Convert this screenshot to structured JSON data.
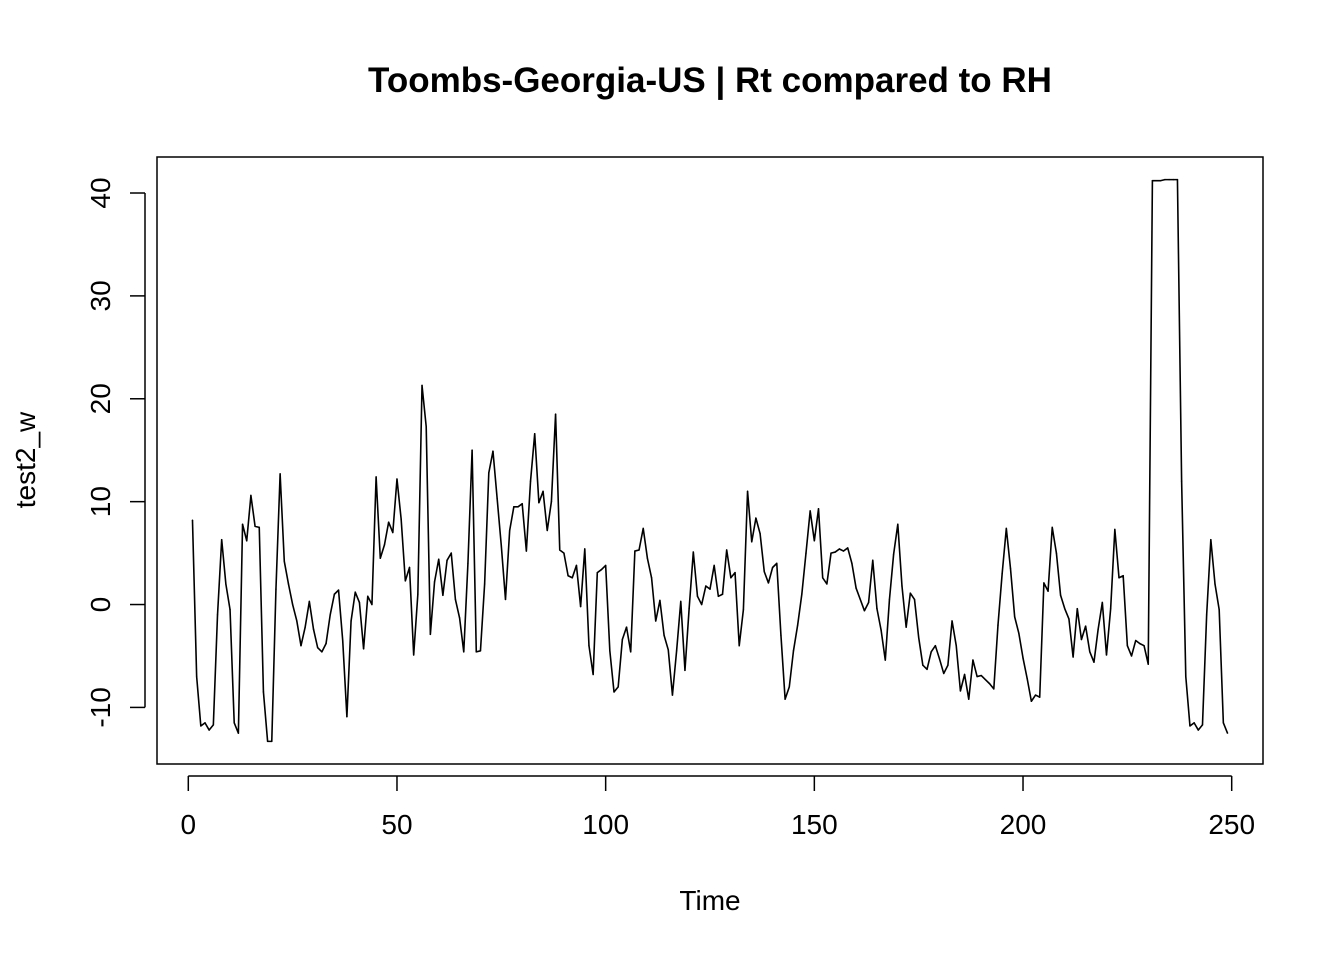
{
  "chart_data": {
    "type": "line",
    "title": "Toombs-Georgia-US | Rt compared to RH",
    "xlabel": "Time",
    "ylabel": "test2_w",
    "xlim": [
      -7.5,
      257.5
    ],
    "ylim": [
      -15.5,
      43.5
    ],
    "x_ticks": [
      0,
      50,
      100,
      150,
      200,
      250
    ],
    "y_ticks": [
      -10,
      0,
      10,
      20,
      30,
      40
    ],
    "x_tick_labels": [
      "0",
      "50",
      "100",
      "150",
      "200",
      "250"
    ],
    "y_tick_labels": [
      "-10",
      "0",
      "10",
      "20",
      "30",
      "40"
    ],
    "grid": false,
    "legend": "none",
    "line_color": "#000000",
    "series": [
      {
        "x_start": 1,
        "values": [
          8.2,
          -7.0,
          -11.8,
          -11.5,
          -12.2,
          -11.7,
          -1.0,
          6.3,
          2.0,
          -0.5,
          -11.5,
          -12.5,
          7.8,
          6.2,
          10.6,
          7.6,
          7.5,
          -8.5,
          -13.3,
          -13.3,
          1.5,
          12.7,
          4.2,
          2.0,
          0.0,
          -1.6,
          -4.0,
          -2.2,
          0.3,
          -2.4,
          -4.2,
          -4.6,
          -3.8,
          -1.0,
          1.0,
          1.4,
          -3.5,
          -10.9,
          -1.6,
          1.2,
          0.2,
          -4.3,
          0.8,
          0.0,
          12.4,
          4.5,
          5.8,
          8.0,
          7.0,
          12.2,
          8.3,
          2.3,
          3.6,
          -4.9,
          1.0,
          21.3,
          17.3,
          -2.9,
          2.2,
          4.4,
          0.9,
          4.3,
          5.0,
          0.5,
          -1.3,
          -4.6,
          4.0,
          15.0,
          -4.6,
          -4.5,
          2.0,
          12.8,
          14.9,
          10.3,
          5.7,
          0.5,
          7.2,
          9.5,
          9.5,
          9.8,
          5.2,
          12.0,
          16.6,
          9.9,
          11.0,
          7.2,
          10.0,
          18.5,
          5.3,
          5.0,
          2.8,
          2.6,
          3.8,
          -0.2,
          5.4,
          -4.0,
          -6.8,
          3.1,
          3.4,
          3.8,
          -4.5,
          -8.5,
          -8.0,
          -3.4,
          -2.2,
          -4.6,
          5.2,
          5.3,
          7.4,
          4.5,
          2.6,
          -1.6,
          0.4,
          -3.0,
          -4.4,
          -8.8,
          -4.5,
          0.3,
          -6.4,
          -0.4,
          5.1,
          0.8,
          0.0,
          1.8,
          1.5,
          3.8,
          0.8,
          1.0,
          5.3,
          2.6,
          3.1,
          -4.0,
          -0.5,
          11.0,
          6.1,
          8.4,
          6.9,
          3.2,
          2.1,
          3.6,
          4.0,
          -3.0,
          -9.2,
          -8.0,
          -4.5,
          -2.0,
          1.0,
          5.0,
          9.1,
          6.2,
          9.3,
          2.6,
          2.0,
          5.0,
          5.1,
          5.4,
          5.2,
          5.5,
          4.0,
          1.6,
          0.5,
          -0.6,
          0.2,
          4.3,
          -0.4,
          -2.5,
          -5.4,
          0.5,
          4.9,
          7.8,
          1.8,
          -2.2,
          1.1,
          0.5,
          -3.2,
          -5.9,
          -6.3,
          -4.6,
          -4.0,
          -5.3,
          -6.7,
          -5.9,
          -1.6,
          -4.0,
          -8.4,
          -6.8,
          -9.2,
          -5.4,
          -7.0,
          -6.9,
          -7.3,
          -7.7,
          -8.2,
          -2.0,
          3.0,
          7.4,
          3.5,
          -1.2,
          -2.8,
          -5.2,
          -7.2,
          -9.4,
          -8.8,
          -9.0,
          2.1,
          1.3,
          7.5,
          5.0,
          0.9,
          -0.4,
          -1.4,
          -5.1,
          -0.4,
          -3.4,
          -2.1,
          -4.6,
          -5.6,
          -2.4,
          0.2,
          -4.9,
          -0.4,
          7.3,
          2.6,
          2.8,
          -4.0,
          -5.0,
          -3.5,
          -3.8,
          -4.0,
          -5.8,
          41.2,
          41.2,
          41.2,
          41.3,
          41.3,
          41.3,
          41.3,
          12.0,
          -7.0,
          -11.8,
          -11.5,
          -12.2,
          -11.7,
          -1.0,
          6.3,
          2.0,
          -0.5,
          -11.5,
          -12.5
        ]
      }
    ]
  }
}
